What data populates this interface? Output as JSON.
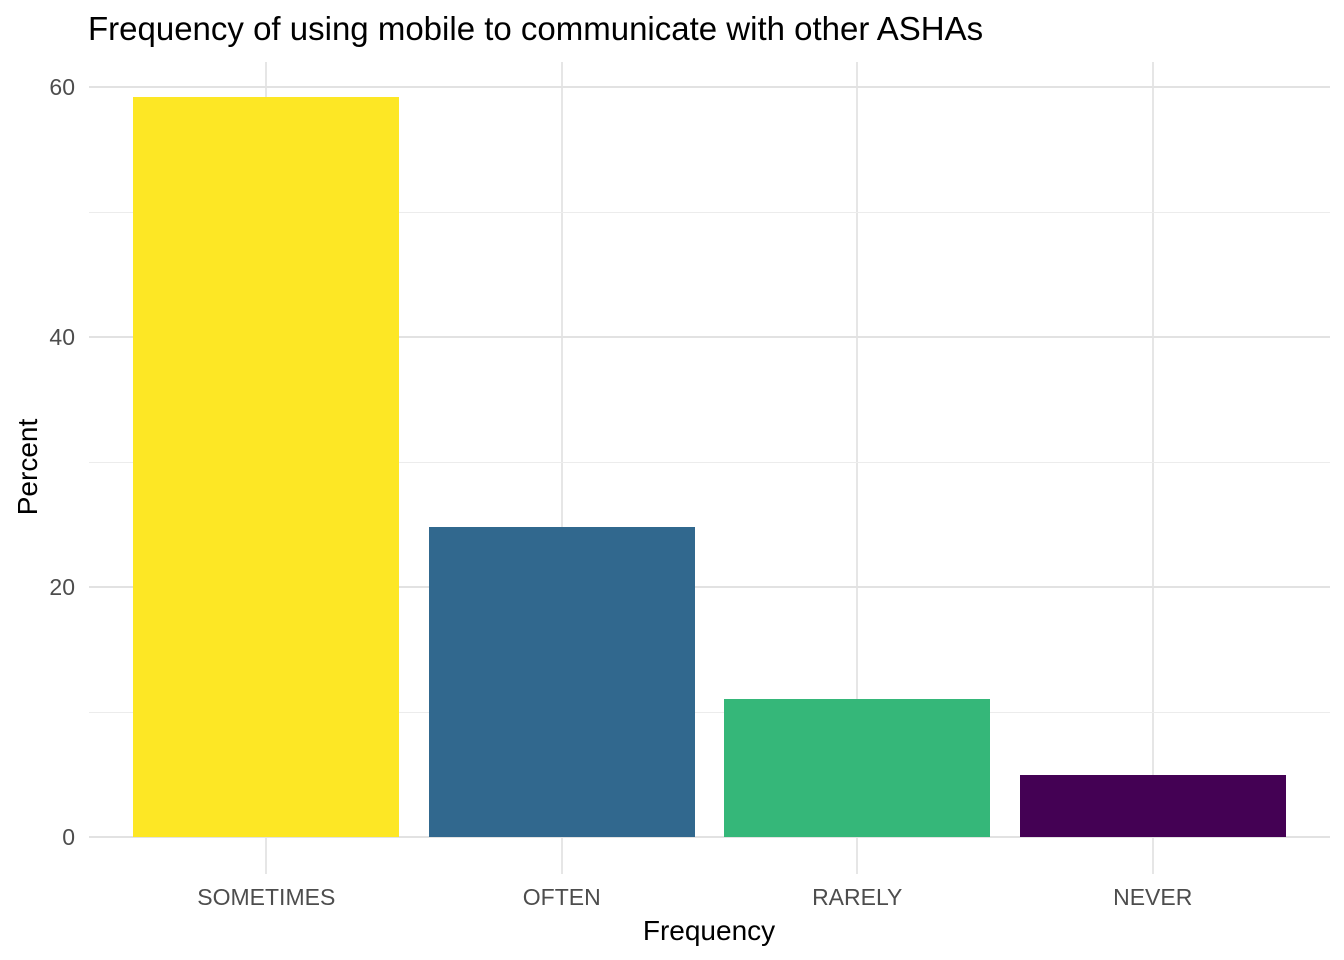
{
  "chart_data": {
    "type": "bar",
    "title": "Frequency of using mobile to communicate with other ASHAs",
    "xlabel": "Frequency",
    "ylabel": "Percent",
    "categories": [
      "SOMETIMES",
      "OFTEN",
      "RARELY",
      "NEVER"
    ],
    "values": [
      59.2,
      24.8,
      11.0,
      4.9
    ],
    "bar_colors": [
      "#FDE725",
      "#31688E",
      "#35B779",
      "#440154"
    ],
    "ylim": [
      -3,
      62
    ],
    "yticks": [
      0,
      20,
      40,
      60
    ],
    "yticks_minor": [
      10,
      30,
      50
    ],
    "grid": "major+minor horizontal, vertical at category centers",
    "legend": "none",
    "background_color": "#FFFFFF",
    "gridline_major_color": "#E2E2E2",
    "gridline_minor_color": "#ECECEC",
    "tick_label_color": "#4D4D4D",
    "text_color": "#000000"
  }
}
